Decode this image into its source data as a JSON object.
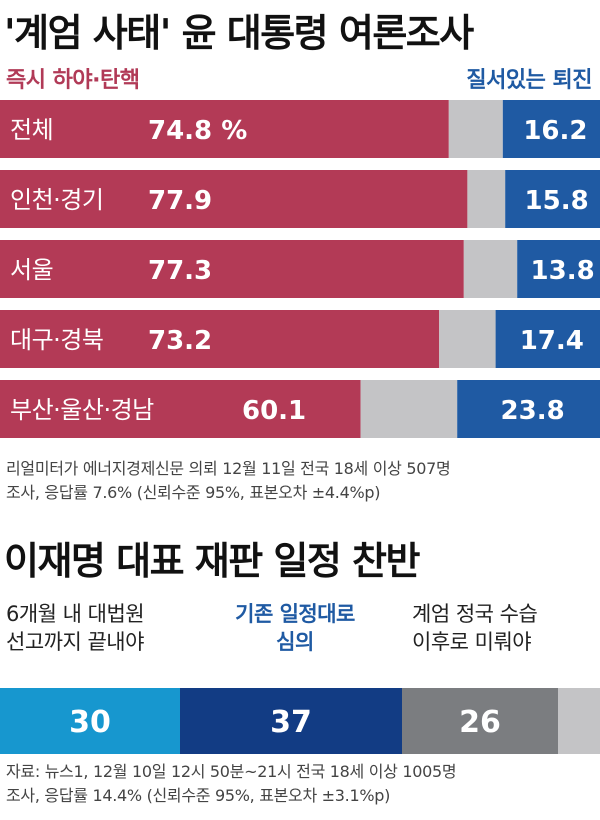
{
  "title1": "'계엄 사태' 윤 대통령 여론조사",
  "legend": {
    "left": "즉시 하야·탄핵",
    "right": "질서있는 퇴진"
  },
  "chart_data": [
    {
      "type": "bar",
      "orientation": "horizontal-stacked-100",
      "categories": [
        "전체",
        "인천·경기",
        "서울",
        "대구·경북",
        "부산·울산·경남"
      ],
      "series": [
        {
          "name": "즉시 하야·탄핵",
          "values": [
            74.8,
            77.9,
            77.3,
            73.2,
            60.1
          ]
        },
        {
          "name": "질서있는 퇴진",
          "values": [
            16.2,
            15.8,
            13.8,
            17.4,
            23.8
          ]
        }
      ],
      "value_labels": [
        [
          "74.8 %",
          "16.2"
        ],
        [
          "77.9",
          "15.8"
        ],
        [
          "77.3",
          "13.8"
        ],
        [
          "73.2",
          "17.4"
        ],
        [
          "60.1",
          "23.8"
        ]
      ]
    },
    {
      "type": "bar",
      "orientation": "single-stacked-100",
      "categories": [
        "6개월 내 대법원 선고까지 끝내야",
        "기존 일정대로 심의",
        "계엄 정국 수습 이후로 미뤄야"
      ],
      "values": [
        30,
        37,
        26
      ],
      "value_labels": [
        "30",
        "37",
        "26"
      ]
    }
  ],
  "source1": [
    "리얼미터가 에너지경제신문 의뢰 12월 11일 전국 18세 이상 507명",
    "조사, 응답률 7.6% (신뢰수준 95%, 표본오차 ±4.4%p)"
  ],
  "title2": "이재명 대표 재판 일정 찬반",
  "cat2": [
    {
      "lines": [
        "6개월 내 대법원",
        "선고까지 끝내야"
      ]
    },
    {
      "lines": [
        "기존 일정대로",
        "심의"
      ]
    },
    {
      "lines": [
        "계엄 정국 수습",
        "이후로 미뤄야"
      ]
    }
  ],
  "source2": [
    "자료: 뉴스1, 12월 10일 12시 50분~21시 전국 18세 이상 1005명",
    "조사, 응답률 14.4% (신뢰수준 95%, 표본오차 ±3.1%p)"
  ],
  "colors": {
    "red": "#b33a56",
    "gray": "#c4c4c6",
    "blue": "#1f5aa3",
    "c2_1": "#1797cf",
    "c2_2": "#123c84",
    "c2_3": "#7b7d80",
    "c2_4": "#c4c4c6"
  }
}
